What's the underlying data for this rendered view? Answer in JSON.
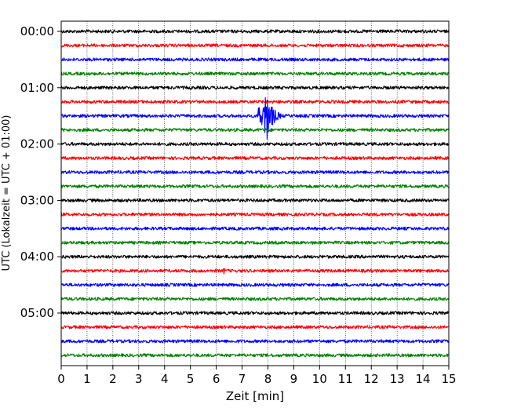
{
  "chart_data": {
    "type": "line",
    "title": "",
    "xlabel": "Zeit  [min]",
    "ylabel": "UTC (Lokalzeit = UTC + 01:00)",
    "xlim": [
      0,
      15
    ],
    "x_ticks": [
      "0",
      "1",
      "2",
      "3",
      "4",
      "5",
      "6",
      "7",
      "8",
      "9",
      "10",
      "11",
      "12",
      "13",
      "14",
      "15"
    ],
    "y_tick_labels": [
      "00:00",
      "01:00",
      "02:00",
      "03:00",
      "04:00",
      "05:00"
    ],
    "lines_per_hour": 4,
    "trace_count": 24,
    "trace_color_cycle": [
      "#000000",
      "#ff0000",
      "#0000ff",
      "#008000"
    ],
    "grid": "vertical dotted",
    "events": [
      {
        "trace": 6,
        "trace_start": "01:30",
        "start_min": 7.6,
        "end_min": 9.3,
        "peak_min": 7.9,
        "amplitude": "large"
      },
      {
        "trace": 17,
        "trace_start": "04:15",
        "start_min": 6.2,
        "end_min": 6.4,
        "peak_min": 6.3,
        "amplitude": "small"
      }
    ]
  }
}
